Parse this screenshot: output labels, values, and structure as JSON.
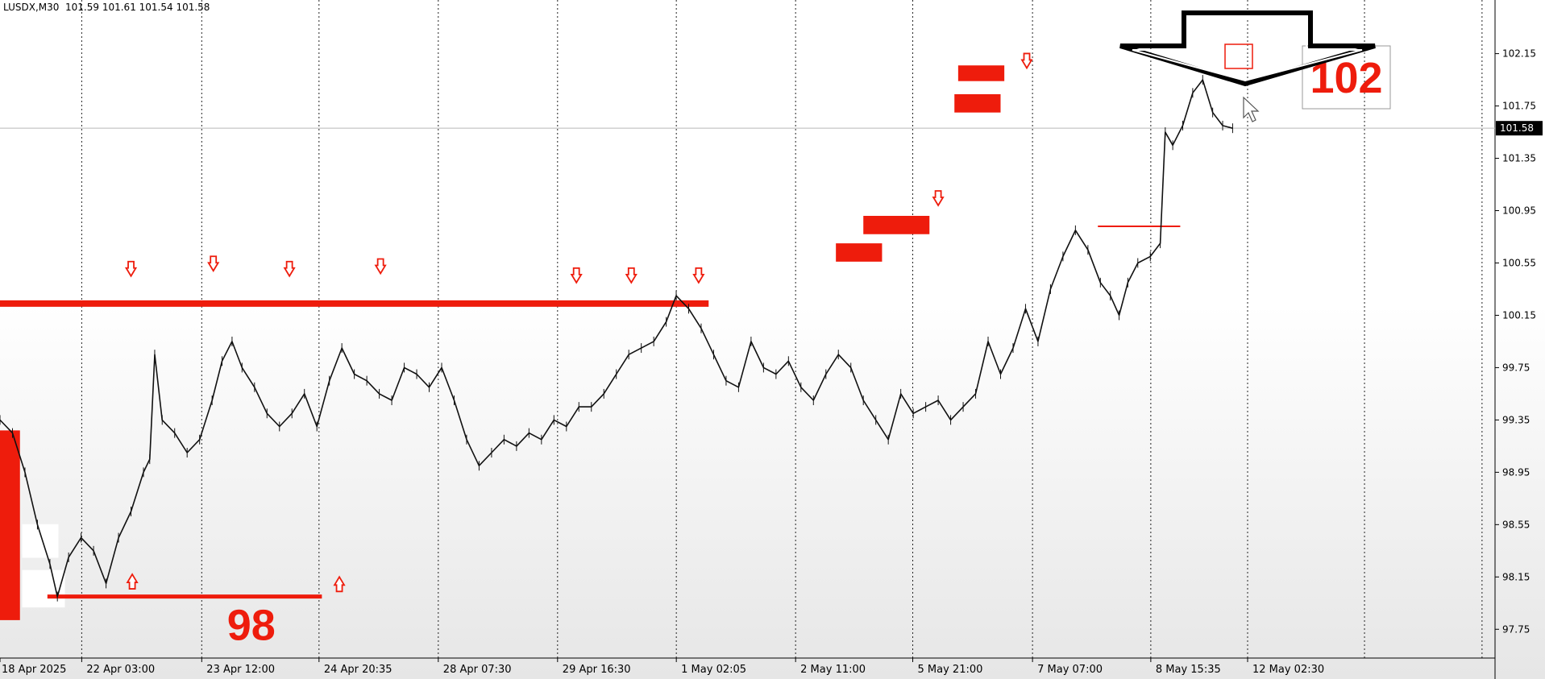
{
  "symbol_info": {
    "symbol": "LUSDX,M30",
    "ohlc": "101.59 101.61 101.54 101.58"
  },
  "colors": {
    "price_line": "#111111",
    "accent": "#ee1c0c",
    "grid": "#222222",
    "axis_text": "#000000",
    "current_price_bg": "#000000"
  },
  "chart_data": {
    "type": "line",
    "title": "",
    "xlabel": "",
    "ylabel": "",
    "ylim": [
      97.53,
      102.56
    ],
    "xlim": [
      0,
      1.0
    ],
    "grid": "vertical-dotted",
    "yticks": [
      "102.15",
      "101.75",
      "101.35",
      "100.95",
      "100.55",
      "100.15",
      "99.75",
      "99.35",
      "98.95",
      "98.55",
      "98.15",
      "97.75"
    ],
    "xticks": [
      {
        "label": "18 Apr 2025",
        "x": 0.0
      },
      {
        "label": "22 Apr 03:00",
        "x": 0.0655
      },
      {
        "label": "23 Apr 12:00",
        "x": 0.1617
      },
      {
        "label": "24 Apr 20:35",
        "x": 0.2557
      },
      {
        "label": "28 Apr 07:30",
        "x": 0.3513
      },
      {
        "label": "29 Apr 16:30",
        "x": 0.4469
      },
      {
        "label": "1 May 02:05",
        "x": 0.5421
      },
      {
        "label": "2 May 11:00",
        "x": 0.6377
      },
      {
        "label": "5 May 21:00",
        "x": 0.7316
      },
      {
        "label": "7 May 07:00",
        "x": 0.8276
      },
      {
        "label": "8 May 15:35",
        "x": 0.9224
      },
      {
        "label": "12 May 02:30",
        "x": 1.0
      }
    ],
    "current_price": "101.58",
    "price_series": [
      [
        0.0,
        99.35
      ],
      [
        0.01,
        99.25
      ],
      [
        0.02,
        98.95
      ],
      [
        0.03,
        98.55
      ],
      [
        0.04,
        98.25
      ],
      [
        0.046,
        98.0
      ],
      [
        0.055,
        98.3
      ],
      [
        0.065,
        98.45
      ],
      [
        0.075,
        98.35
      ],
      [
        0.085,
        98.1
      ],
      [
        0.095,
        98.45
      ],
      [
        0.105,
        98.65
      ],
      [
        0.115,
        98.95
      ],
      [
        0.12,
        99.05
      ],
      [
        0.124,
        99.85
      ],
      [
        0.13,
        99.35
      ],
      [
        0.14,
        99.25
      ],
      [
        0.15,
        99.1
      ],
      [
        0.16,
        99.2
      ],
      [
        0.17,
        99.5
      ],
      [
        0.178,
        99.8
      ],
      [
        0.186,
        99.95
      ],
      [
        0.194,
        99.75
      ],
      [
        0.204,
        99.6
      ],
      [
        0.214,
        99.4
      ],
      [
        0.224,
        99.3
      ],
      [
        0.234,
        99.4
      ],
      [
        0.244,
        99.55
      ],
      [
        0.254,
        99.3
      ],
      [
        0.264,
        99.65
      ],
      [
        0.274,
        99.9
      ],
      [
        0.284,
        99.7
      ],
      [
        0.294,
        99.65
      ],
      [
        0.304,
        99.55
      ],
      [
        0.314,
        99.5
      ],
      [
        0.324,
        99.75
      ],
      [
        0.334,
        99.7
      ],
      [
        0.344,
        99.6
      ],
      [
        0.354,
        99.75
      ],
      [
        0.364,
        99.5
      ],
      [
        0.374,
        99.2
      ],
      [
        0.384,
        99.0
      ],
      [
        0.394,
        99.1
      ],
      [
        0.404,
        99.2
      ],
      [
        0.414,
        99.15
      ],
      [
        0.424,
        99.25
      ],
      [
        0.434,
        99.2
      ],
      [
        0.444,
        99.35
      ],
      [
        0.454,
        99.3
      ],
      [
        0.464,
        99.45
      ],
      [
        0.474,
        99.45
      ],
      [
        0.484,
        99.55
      ],
      [
        0.494,
        99.7
      ],
      [
        0.504,
        99.85
      ],
      [
        0.514,
        99.9
      ],
      [
        0.524,
        99.95
      ],
      [
        0.534,
        100.1
      ],
      [
        0.542,
        100.3
      ],
      [
        0.552,
        100.2
      ],
      [
        0.562,
        100.05
      ],
      [
        0.572,
        99.85
      ],
      [
        0.582,
        99.65
      ],
      [
        0.592,
        99.6
      ],
      [
        0.602,
        99.95
      ],
      [
        0.612,
        99.75
      ],
      [
        0.622,
        99.7
      ],
      [
        0.632,
        99.8
      ],
      [
        0.642,
        99.6
      ],
      [
        0.652,
        99.5
      ],
      [
        0.662,
        99.7
      ],
      [
        0.672,
        99.85
      ],
      [
        0.682,
        99.75
      ],
      [
        0.692,
        99.5
      ],
      [
        0.702,
        99.35
      ],
      [
        0.712,
        99.2
      ],
      [
        0.722,
        99.55
      ],
      [
        0.732,
        99.4
      ],
      [
        0.742,
        99.45
      ],
      [
        0.752,
        99.5
      ],
      [
        0.762,
        99.35
      ],
      [
        0.772,
        99.45
      ],
      [
        0.782,
        99.55
      ],
      [
        0.792,
        99.95
      ],
      [
        0.802,
        99.7
      ],
      [
        0.812,
        99.9
      ],
      [
        0.822,
        100.2
      ],
      [
        0.832,
        99.95
      ],
      [
        0.842,
        100.35
      ],
      [
        0.852,
        100.6
      ],
      [
        0.862,
        100.8
      ],
      [
        0.872,
        100.65
      ],
      [
        0.882,
        100.4
      ],
      [
        0.89,
        100.3
      ],
      [
        0.897,
        100.15
      ],
      [
        0.904,
        100.4
      ],
      [
        0.912,
        100.55
      ],
      [
        0.922,
        100.6
      ],
      [
        0.93,
        100.7
      ],
      [
        0.934,
        101.55
      ],
      [
        0.94,
        101.45
      ],
      [
        0.948,
        101.6
      ],
      [
        0.956,
        101.85
      ],
      [
        0.964,
        101.95
      ],
      [
        0.972,
        101.7
      ],
      [
        0.98,
        101.6
      ],
      [
        0.988,
        101.58
      ]
    ],
    "annotations": {
      "resistance_line": {
        "y": 100.24,
        "x_start": 0.0,
        "x_end": 0.568
      },
      "support_line": {
        "y": 98.0,
        "x_start": 0.038,
        "x_end": 0.258
      },
      "short_line": {
        "y": 100.83,
        "x_start": 0.88,
        "x_end": 0.946
      },
      "down_arrows": [
        {
          "x": 0.105,
          "y": 100.45
        },
        {
          "x": 0.171,
          "y": 100.49
        },
        {
          "x": 0.232,
          "y": 100.45
        },
        {
          "x": 0.305,
          "y": 100.47
        },
        {
          "x": 0.462,
          "y": 100.4
        },
        {
          "x": 0.506,
          "y": 100.4
        },
        {
          "x": 0.56,
          "y": 100.4
        },
        {
          "x": 0.752,
          "y": 100.99
        },
        {
          "x": 0.823,
          "y": 102.04
        }
      ],
      "up_arrows": [
        {
          "x": 0.106,
          "y": 98.17
        },
        {
          "x": 0.272,
          "y": 98.15
        }
      ],
      "red_zones": [
        {
          "x0": -0.039,
          "x1": 0.016,
          "y0": 97.82,
          "y1": 99.27
        },
        {
          "x0": 0.67,
          "x1": 0.707,
          "y0": 100.56,
          "y1": 100.7
        },
        {
          "x0": 0.692,
          "x1": 0.745,
          "y0": 100.77,
          "y1": 100.91
        },
        {
          "x0": 0.765,
          "x1": 0.802,
          "y0": 101.7,
          "y1": 101.84
        },
        {
          "x0": 0.768,
          "x1": 0.805,
          "y0": 101.94,
          "y1": 102.06
        }
      ],
      "label_98": {
        "text": "98",
        "x": 0.182,
        "y": 97.78
      },
      "label_102": {
        "text": "102",
        "x": 0.907,
        "y": 101.92
      },
      "big_arrow_tip": {
        "x": 0.834,
        "y": 101.95
      }
    }
  }
}
